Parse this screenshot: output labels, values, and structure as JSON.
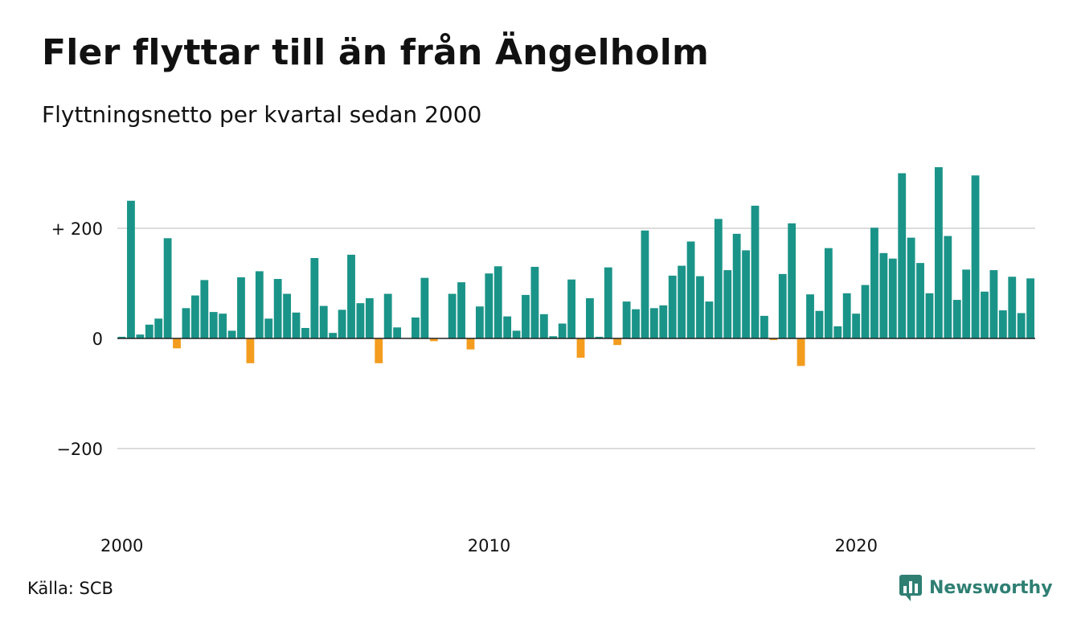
{
  "header": {
    "title": "Fler flyttar till än från Ängelholm",
    "subtitle": "Flyttningsnetto per kvartal sedan 2000"
  },
  "footer": {
    "source": "Källa: SCB",
    "brand": "Newsworthy",
    "brand_icon": "newsworthy-logo-icon"
  },
  "colors": {
    "positive": "#1a9488",
    "negative": "#f39c1e",
    "grid": "#dcdcdc",
    "zero_line": "#222222",
    "brand": "#2f7f73"
  },
  "chart_data": {
    "type": "bar",
    "title": "Fler flyttar till än från Ängelholm",
    "subtitle": "Flyttningsnetto per kvartal sedan 2000",
    "x_start": "2000 Q1",
    "x_ticks": [
      "2000",
      "2010",
      "2020"
    ],
    "y_ticks": [
      {
        "value": 200,
        "label": "+ 200"
      },
      {
        "value": 0,
        "label": "0"
      },
      {
        "value": -200,
        "label": "−200"
      }
    ],
    "ylim": [
      -300,
      320
    ],
    "grid": true,
    "values": [
      3,
      250,
      7,
      25,
      36,
      182,
      -18,
      55,
      78,
      106,
      48,
      45,
      14,
      111,
      -45,
      122,
      36,
      108,
      81,
      47,
      19,
      146,
      59,
      10,
      52,
      152,
      64,
      73,
      -45,
      81,
      20,
      0,
      38,
      110,
      -5,
      0,
      81,
      102,
      -20,
      58,
      118,
      131,
      40,
      14,
      79,
      130,
      44,
      4,
      27,
      107,
      -35,
      73,
      3,
      129,
      -12,
      67,
      53,
      196,
      55,
      60,
      114,
      132,
      176,
      113,
      67,
      217,
      124,
      190,
      160,
      241,
      41,
      -3,
      117,
      209,
      -50,
      80,
      50,
      164,
      22,
      82,
      45,
      97,
      201,
      155,
      145,
      300,
      183,
      137,
      82,
      311,
      186,
      70,
      125,
      296,
      85,
      124,
      51,
      112,
      46,
      109
    ]
  }
}
